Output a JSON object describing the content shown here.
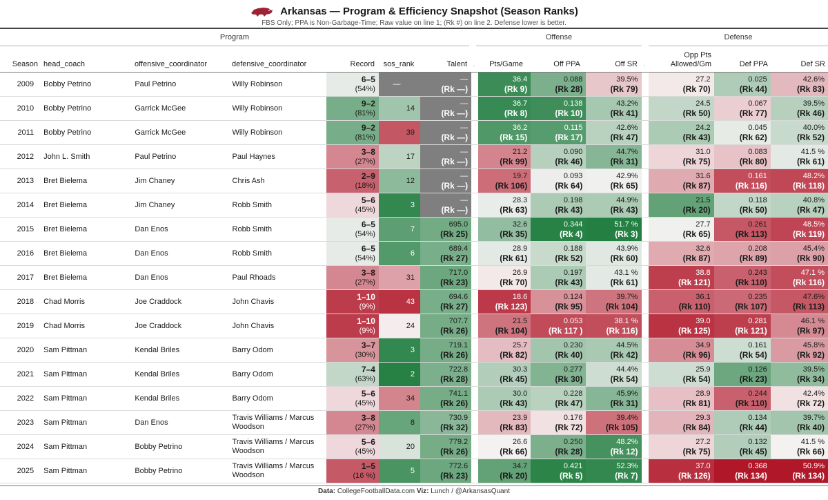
{
  "header": {
    "title": "Arkansas — Program & Efficiency Snapshot (Season Ranks)",
    "subtitle": "FBS Only; PPA is Non-Garbage-Time; Raw value on line 1; (Rk #) on line 2. Defense lower is better.",
    "logo_icon": "razorback-hog-icon"
  },
  "spanners": {
    "program": "Program",
    "offense": "Offense",
    "defense": "Defense"
  },
  "columns": {
    "season": "Season",
    "head_coach": "head_coach",
    "oc": "offensive_coordinator",
    "dc": "defensive_coordinator",
    "record": "Record",
    "sos": "sos_rank",
    "talent": "Talent",
    "sep": ".",
    "pts": "Pts/Game",
    "off_ppa": "Off PPA",
    "off_sr": "Off SR",
    "opp_pts_1": "Opp Pts",
    "opp_pts_2": "Allowed/Gm",
    "def_ppa": "Def PPA",
    "def_sr": "Def SR"
  },
  "footer": {
    "data_label": "Data:",
    "data_value": "CollegeFootballData.com",
    "viz_label": "Viz:",
    "viz_value": "Lunch / @ArkansasQuant"
  },
  "colors": {
    "best": "#1a7a3a",
    "worst": "#b0182a",
    "neutral": "#f7f4f4",
    "missing": "#7f7f7f"
  },
  "chart_data": {
    "type": "table",
    "rows": [
      {
        "season": "2009",
        "hc": "Bobby Petrino",
        "oc": "Paul Petrino",
        "dc": "Willy Robinson",
        "record": "6–5",
        "win_pct": "(54%)",
        "sos": "—",
        "talent": "—",
        "talent_rk": "(Rk —)",
        "pts": "36.4",
        "pts_rk": "(Rk 9)",
        "off_ppa": "0.088",
        "off_ppa_rk": "(Rk 28)",
        "off_sr": "39.5%",
        "off_sr_rk": "(Rk 79)",
        "opp_pts": "27.2",
        "opp_pts_rk": "(Rk 70)",
        "def_ppa": "0.025",
        "def_ppa_rk": "(Rk 44)",
        "def_sr": "42.6%",
        "def_sr_rk": "(Rk 83)"
      },
      {
        "season": "2010",
        "hc": "Bobby Petrino",
        "oc": "Garrick McGee",
        "dc": "Willy Robinson",
        "record": "9–2",
        "win_pct": "(81%)",
        "sos": "14",
        "talent": "—",
        "talent_rk": "(Rk —)",
        "pts": "36.7",
        "pts_rk": "(Rk 8)",
        "off_ppa": "0.138",
        "off_ppa_rk": "(Rk 10)",
        "off_sr": "43.2%",
        "off_sr_rk": "(Rk 41)",
        "opp_pts": "24.5",
        "opp_pts_rk": "(Rk 50)",
        "def_ppa": "0.067",
        "def_ppa_rk": "(Rk 77)",
        "def_sr": "39.5%",
        "def_sr_rk": "(Rk 46)"
      },
      {
        "season": "2011",
        "hc": "Bobby Petrino",
        "oc": "Garrick McGee",
        "dc": "Willy Robinson",
        "record": "9–2",
        "win_pct": "(81%)",
        "sos": "39",
        "talent": "—",
        "talent_rk": "(Rk —)",
        "pts": "36.2",
        "pts_rk": "(Rk 15)",
        "off_ppa": "0.115",
        "off_ppa_rk": "(Rk 17)",
        "off_sr": "42.6%",
        "off_sr_rk": "(Rk 47)",
        "opp_pts": "24.2",
        "opp_pts_rk": "(Rk 43)",
        "def_ppa": "0.045",
        "def_ppa_rk": "(Rk 62)",
        "def_sr": "40.0%",
        "def_sr_rk": "(Rk 52)"
      },
      {
        "season": "2012",
        "hc": "John L. Smith",
        "oc": "Paul Petrino",
        "dc": "Paul Haynes",
        "record": "3–8",
        "win_pct": "(27%)",
        "sos": "17",
        "talent": "—",
        "talent_rk": "(Rk —)",
        "pts": "21.2",
        "pts_rk": "(Rk 99)",
        "off_ppa": "0.090",
        "off_ppa_rk": "(Rk 46)",
        "off_sr": "44.7%",
        "off_sr_rk": "(Rk 31)",
        "opp_pts": "31.0",
        "opp_pts_rk": "(Rk 75)",
        "def_ppa": "0.083",
        "def_ppa_rk": "(Rk 80)",
        "def_sr": "41.5 %",
        "def_sr_rk": "(Rk 61)"
      },
      {
        "season": "2013",
        "hc": "Bret Bielema",
        "oc": "Jim Chaney",
        "dc": "Chris Ash",
        "record": "2–9",
        "win_pct": "(18%)",
        "sos": "12",
        "talent": "—",
        "talent_rk": "(Rk —)",
        "pts": "19.7",
        "pts_rk": "(Rk 106)",
        "off_ppa": "0.093",
        "off_ppa_rk": "(Rk 64)",
        "off_sr": "42.9%",
        "off_sr_rk": "(Rk 65)",
        "opp_pts": "31.6",
        "opp_pts_rk": "(Rk 87)",
        "def_ppa": "0.161",
        "def_ppa_rk": "(Rk 116)",
        "def_sr": "48.2%",
        "def_sr_rk": "(Rk 118)"
      },
      {
        "season": "2014",
        "hc": "Bret Bielema",
        "oc": "Jim Chaney",
        "dc": "Robb Smith",
        "record": "5–6",
        "win_pct": "(45%)",
        "sos": "3",
        "talent": "—",
        "talent_rk": "(Rk —)",
        "pts": "28.3",
        "pts_rk": "(Rk 63)",
        "off_ppa": "0.198",
        "off_ppa_rk": "(Rk 43)",
        "off_sr": "44.9%",
        "off_sr_rk": "(Rk 43)",
        "opp_pts": "21.5",
        "opp_pts_rk": "(Rk 20)",
        "def_ppa": "0.118",
        "def_ppa_rk": "(Rk 50)",
        "def_sr": "40.8%",
        "def_sr_rk": "(Rk 47)"
      },
      {
        "season": "2015",
        "hc": "Bret Bielema",
        "oc": "Dan Enos",
        "dc": "Robb Smith",
        "record": "6–5",
        "win_pct": "(54%)",
        "sos": "7",
        "talent": "695.0",
        "talent_rk": "(Rk 25)",
        "pts": "32.6",
        "pts_rk": "(Rk 35)",
        "off_ppa": "0.344",
        "off_ppa_rk": "(Rk 4)",
        "off_sr": "51.7 %",
        "off_sr_rk": "(Rk 3)",
        "opp_pts": "27.7",
        "opp_pts_rk": "(Rk 65)",
        "def_ppa": "0.261",
        "def_ppa_rk": "(Rk 113)",
        "def_sr": "48.5%",
        "def_sr_rk": "(Rk 119)"
      },
      {
        "season": "2016",
        "hc": "Bret Bielema",
        "oc": "Dan Enos",
        "dc": "Robb Smith",
        "record": "6–5",
        "win_pct": "(54%)",
        "sos": "6",
        "talent": "689.4",
        "talent_rk": "(Rk 27)",
        "pts": "28.9",
        "pts_rk": "(Rk 61)",
        "off_ppa": "0.188",
        "off_ppa_rk": "(Rk 52)",
        "off_sr": "43.9%",
        "off_sr_rk": "(Rk 60)",
        "opp_pts": "32.6",
        "opp_pts_rk": "(Rk 87)",
        "def_ppa": "0.208",
        "def_ppa_rk": "(Rk 89)",
        "def_sr": "45.4%",
        "def_sr_rk": "(Rk 90)"
      },
      {
        "season": "2017",
        "hc": "Bret Bielema",
        "oc": "Dan Enos",
        "dc": "Paul Rhoads",
        "record": "3–8",
        "win_pct": "(27%)",
        "sos": "31",
        "talent": "717.0",
        "talent_rk": "(Rk 23)",
        "pts": "26.9",
        "pts_rk": "(Rk 70)",
        "off_ppa": "0.197",
        "off_ppa_rk": "(Rk 43)",
        "off_sr": "43.1 %",
        "off_sr_rk": "(Rk 61)",
        "opp_pts": "38.8",
        "opp_pts_rk": "(Rk 121)",
        "def_ppa": "0.243",
        "def_ppa_rk": "(Rk 110)",
        "def_sr": "47.1 %",
        "def_sr_rk": "(Rk 116)"
      },
      {
        "season": "2018",
        "hc": "Chad Morris",
        "oc": "Joe Craddock",
        "dc": "John Chavis",
        "record": "1–10",
        "win_pct": "(9%)",
        "sos": "43",
        "talent": "694.6",
        "talent_rk": "(Rk 27)",
        "pts": "18.6",
        "pts_rk": "(Rk 123)",
        "off_ppa": "0.124",
        "off_ppa_rk": "(Rk 95)",
        "off_sr": "39.7%",
        "off_sr_rk": "(Rk 104)",
        "opp_pts": "36.1",
        "opp_pts_rk": "(Rk 110)",
        "def_ppa": "0.235",
        "def_ppa_rk": "(Rk 107)",
        "def_sr": "47.6%",
        "def_sr_rk": "(Rk 113)"
      },
      {
        "season": "2019",
        "hc": "Chad Morris",
        "oc": "Joe Craddock",
        "dc": "John Chavis",
        "record": "1–10",
        "win_pct": "(9%)",
        "sos": "24",
        "talent": "707.7",
        "talent_rk": "(Rk 26)",
        "pts": "21.5",
        "pts_rk": "(Rk 104)",
        "off_ppa": "0.053",
        "off_ppa_rk": "(Rk 117 )",
        "off_sr": "38.1 %",
        "off_sr_rk": "(Rk 116)",
        "opp_pts": "39.0",
        "opp_pts_rk": "(Rk 125)",
        "def_ppa": "0.281",
        "def_ppa_rk": "(Rk 121)",
        "def_sr": "46.1 %",
        "def_sr_rk": "(Rk 97)"
      },
      {
        "season": "2020",
        "hc": "Sam Pittman",
        "oc": "Kendal Briles",
        "dc": "Barry Odom",
        "record": "3–7",
        "win_pct": "(30%)",
        "sos": "3",
        "talent": "719.1",
        "talent_rk": "(Rk 26)",
        "pts": "25.7",
        "pts_rk": "(Rk 82)",
        "off_ppa": "0.230",
        "off_ppa_rk": "(Rk 40)",
        "off_sr": "44.5%",
        "off_sr_rk": "(Rk 42)",
        "opp_pts": "34.9",
        "opp_pts_rk": "(Rk 96)",
        "def_ppa": "0.161",
        "def_ppa_rk": "(Rk 54)",
        "def_sr": "45.8%",
        "def_sr_rk": "(Rk 92)"
      },
      {
        "season": "2021",
        "hc": "Sam Pittman",
        "oc": "Kendal Briles",
        "dc": "Barry Odom",
        "record": "7–4",
        "win_pct": "(63%)",
        "sos": "2",
        "talent": "722.8",
        "talent_rk": "(Rk 28)",
        "pts": "30.3",
        "pts_rk": "(Rk 45)",
        "off_ppa": "0.277",
        "off_ppa_rk": "(Rk 30)",
        "off_sr": "44.4%",
        "off_sr_rk": "(Rk 54)",
        "opp_pts": "25.9",
        "opp_pts_rk": "(Rk 54)",
        "def_ppa": "0.126",
        "def_ppa_rk": "(Rk 23)",
        "def_sr": "39.5%",
        "def_sr_rk": "(Rk 34)"
      },
      {
        "season": "2022",
        "hc": "Sam Pittman",
        "oc": "Kendal Briles",
        "dc": "Barry Odom",
        "record": "5–6",
        "win_pct": "(45%)",
        "sos": "34",
        "talent": "741.1",
        "talent_rk": "(Rk 26)",
        "pts": "30.0",
        "pts_rk": "(Rk 43)",
        "off_ppa": "0.228",
        "off_ppa_rk": "(Rk 47)",
        "off_sr": "45.9%",
        "off_sr_rk": "(Rk 31)",
        "opp_pts": "28.9",
        "opp_pts_rk": "(Rk 81)",
        "def_ppa": "0.244",
        "def_ppa_rk": "(Rk 110)",
        "def_sr": "42.4%",
        "def_sr_rk": "(Rk 72)"
      },
      {
        "season": "2023",
        "hc": "Sam Pittman",
        "oc": "Dan Enos",
        "dc": "Travis Williams / Marcus Woodson",
        "record": "3–8",
        "win_pct": "(27%)",
        "sos": "8",
        "talent": "730.9",
        "talent_rk": "(Rk 32)",
        "pts": "23.9",
        "pts_rk": "(Rk 83)",
        "off_ppa": "0.176",
        "off_ppa_rk": "(Rk 72)",
        "off_sr": "39.4%",
        "off_sr_rk": "(Rk 105)",
        "opp_pts": "29.3",
        "opp_pts_rk": "(Rk 84)",
        "def_ppa": "0.134",
        "def_ppa_rk": "(Rk 44)",
        "def_sr": "39.7%",
        "def_sr_rk": "(Rk 40)"
      },
      {
        "season": "2024",
        "hc": "Sam Pittman",
        "oc": "Bobby Petrino",
        "dc": "Travis Williams / Marcus Woodson",
        "record": "5–6",
        "win_pct": "(45%)",
        "sos": "20",
        "talent": "779.2",
        "talent_rk": "(Rk 26)",
        "pts": "26.6",
        "pts_rk": "(Rk 66)",
        "off_ppa": "0.250",
        "off_ppa_rk": "(Rk 28)",
        "off_sr": "48.2%",
        "off_sr_rk": "(Rk 12)",
        "opp_pts": "27.2",
        "opp_pts_rk": "(Rk 75)",
        "def_ppa": "0.132",
        "def_ppa_rk": "(Rk 45)",
        "def_sr": "41.5 %",
        "def_sr_rk": "(Rk 66)"
      },
      {
        "season": "2025",
        "hc": "Sam Pittman",
        "oc": "Bobby Petrino",
        "dc": "Travis Williams / Marcus Woodson",
        "record": "1–5",
        "win_pct": "(16 %)",
        "sos": "5",
        "talent": "772.6",
        "talent_rk": "(Rk 23)",
        "pts": "34.7",
        "pts_rk": "(Rk 20)",
        "off_ppa": "0.421",
        "off_ppa_rk": "(Rk 5)",
        "off_sr": "52.3%",
        "off_sr_rk": "(Rk 7)",
        "opp_pts": "37.0",
        "opp_pts_rk": "(Rk 126)",
        "def_ppa": "0.368",
        "def_ppa_rk": "(Rk 134)",
        "def_sr": "50.9%",
        "def_sr_rk": "(Rk 134)"
      }
    ]
  }
}
